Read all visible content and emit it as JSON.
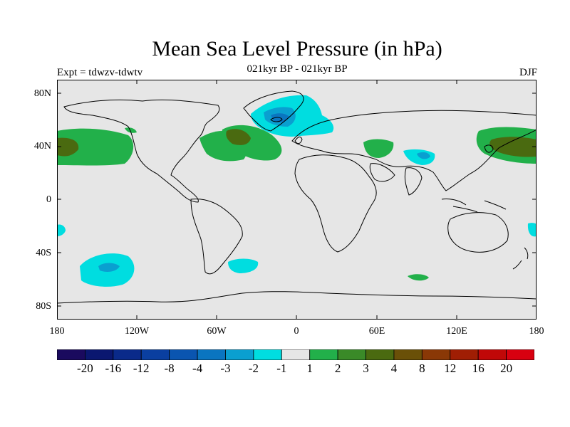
{
  "title": "Mean Sea Level Pressure (in hPa)",
  "subtitle_left": "Expt = tdwzv-tdwtv",
  "subtitle_center": "021kyr BP - 021kyr BP",
  "subtitle_right": "DJF",
  "lat_labels": [
    "80N",
    "40N",
    "0",
    "40S",
    "80S"
  ],
  "lon_labels": [
    "180",
    "120W",
    "60W",
    "0",
    "60E",
    "120E",
    "180"
  ],
  "colorbar": {
    "labels": [
      "-20",
      "-16",
      "-12",
      "-8",
      "-4",
      "-3",
      "-2",
      "-1",
      "1",
      "2",
      "3",
      "4",
      "8",
      "12",
      "16",
      "20"
    ],
    "colors": [
      "#1a0a5e",
      "#0a1770",
      "#0a2a8a",
      "#0a3fa0",
      "#0a55b0",
      "#0a75c0",
      "#0a9fd0",
      "#00dde0",
      "#e6e6e6",
      "#22b04a",
      "#3a8a28",
      "#4a6a10",
      "#6a5008",
      "#8a3806",
      "#a01e04",
      "#c00808",
      "#d80010"
    ],
    "color_labels": {
      "ocean_bg": "#e6e6e6",
      "positive_light": "#22b04a",
      "positive_mid": "#4a6a10",
      "negative_light": "#00dde0",
      "negative_mid": "#0a9fd0",
      "negative_strong": "#0a75c0"
    }
  }
}
